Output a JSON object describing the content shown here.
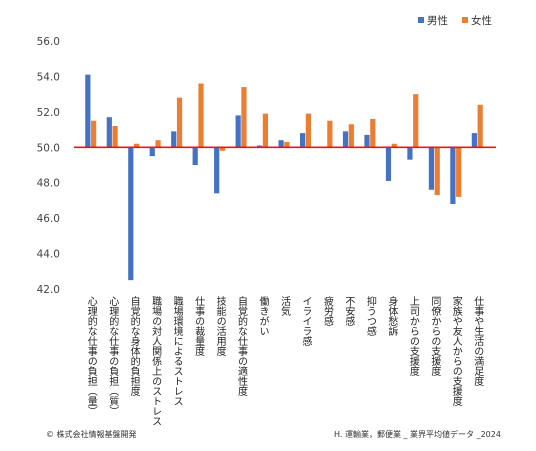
{
  "chart_data": {
    "type": "bar",
    "ylim": [
      42.0,
      56.0
    ],
    "yticks": [
      "56.0",
      "54.0",
      "52.0",
      "50.0",
      "48.0",
      "46.0",
      "44.0",
      "42.0"
    ],
    "baseline": 50.0,
    "legend_placement": "top-right",
    "grid": false,
    "categories": [
      "心理的な仕事の負担（量）",
      "心理的な仕事の負担（質）",
      "自覚的な身体的負担度",
      "職場の対人関係上のストレス",
      "職場環境によるストレス",
      "仕事の裁量度",
      "技能の活用度",
      "自覚的な仕事の適性度",
      "働きがい",
      "活気",
      "イライラ感",
      "疲労感",
      "不安感",
      "抑うつ感",
      "身体愁訴",
      "上司からの支援度",
      "同僚からの支援度",
      "家族や友人からの支援度",
      "仕事や生活の満足度"
    ],
    "series": [
      {
        "name": "男性",
        "color": "#4472C4",
        "values": [
          54.1,
          51.7,
          42.5,
          49.5,
          50.9,
          49.0,
          47.4,
          51.8,
          50.1,
          50.4,
          50.8,
          50.0,
          50.9,
          50.7,
          48.1,
          49.3,
          47.6,
          46.8,
          50.8
        ]
      },
      {
        "name": "女性",
        "color": "#ED7D31",
        "values": [
          51.5,
          51.2,
          50.2,
          50.4,
          52.8,
          53.6,
          49.8,
          53.4,
          51.9,
          50.3,
          51.9,
          51.5,
          51.3,
          51.6,
          50.2,
          53.0,
          47.3,
          47.2,
          52.4
        ]
      }
    ],
    "baseline_color": "#E31A1C"
  },
  "footer": {
    "left": "© 株式会社情報基盤開発",
    "right": "H. 運輸業，郵便業 _ 業界平均値データ _2024"
  }
}
